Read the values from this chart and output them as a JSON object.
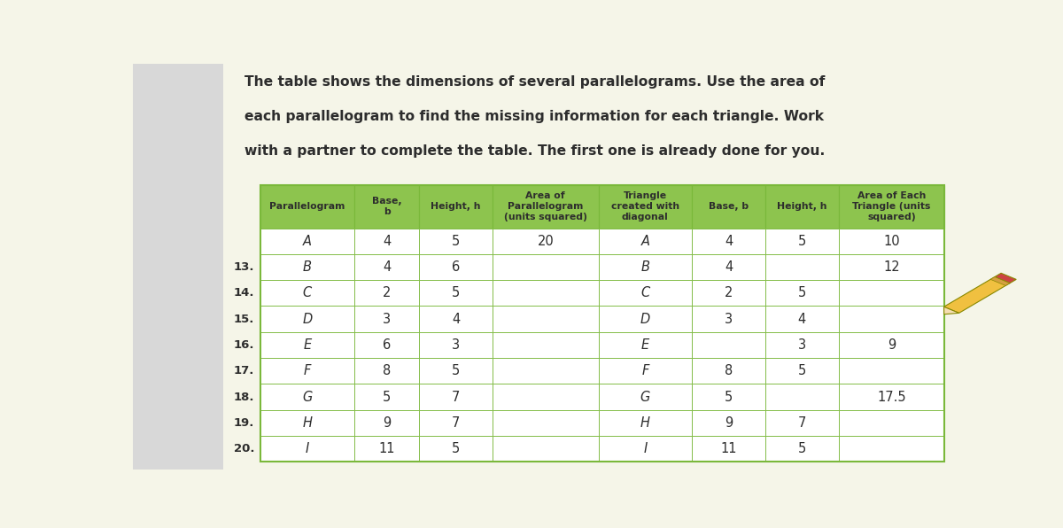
{
  "title_line1": "The table shows the dimensions of several parallelograms. Use the area of",
  "title_line2": "each parallelogram to find the missing information for each triangle. Work",
  "title_line3": "with a partner to complete the table. The first one is already done for you.",
  "header": [
    "Parallelogram",
    "Base,\nb",
    "Height, h",
    "Area of\nParallelogram\n(units squared)",
    "Triangle\ncreated with\ndiagonal",
    "Base, b",
    "Height, h",
    "Area of Each\nTriangle (units\nsquared)"
  ],
  "row_numbers": [
    "",
    "13.",
    "14.",
    "15.",
    "16.",
    "17.",
    "18.",
    "19.",
    "20."
  ],
  "rows": [
    [
      "A",
      "4",
      "5",
      "20",
      "A",
      "4",
      "5",
      "10"
    ],
    [
      "B",
      "4",
      "6",
      "",
      "B",
      "4",
      "",
      "12"
    ],
    [
      "C",
      "2",
      "5",
      "",
      "C",
      "2",
      "5",
      ""
    ],
    [
      "D",
      "3",
      "4",
      "",
      "D",
      "3",
      "4",
      ""
    ],
    [
      "E",
      "6",
      "3",
      "",
      "E",
      "",
      "3",
      "9"
    ],
    [
      "F",
      "8",
      "5",
      "",
      "F",
      "8",
      "5",
      ""
    ],
    [
      "G",
      "5",
      "7",
      "",
      "G",
      "5",
      "",
      "17.5"
    ],
    [
      "H",
      "9",
      "7",
      "",
      "H",
      "9",
      "7",
      ""
    ],
    [
      "I",
      "11",
      "5",
      "",
      "I",
      "11",
      "5",
      ""
    ]
  ],
  "italic_cols": [
    0,
    4
  ],
  "header_bg": "#8dc44e",
  "grid_color": "#7ab83a",
  "text_color": "#2d2d2d",
  "page_bg": "#f5f5e8",
  "left_margin_bg": "#d8d8d8",
  "pencil_row": 2
}
